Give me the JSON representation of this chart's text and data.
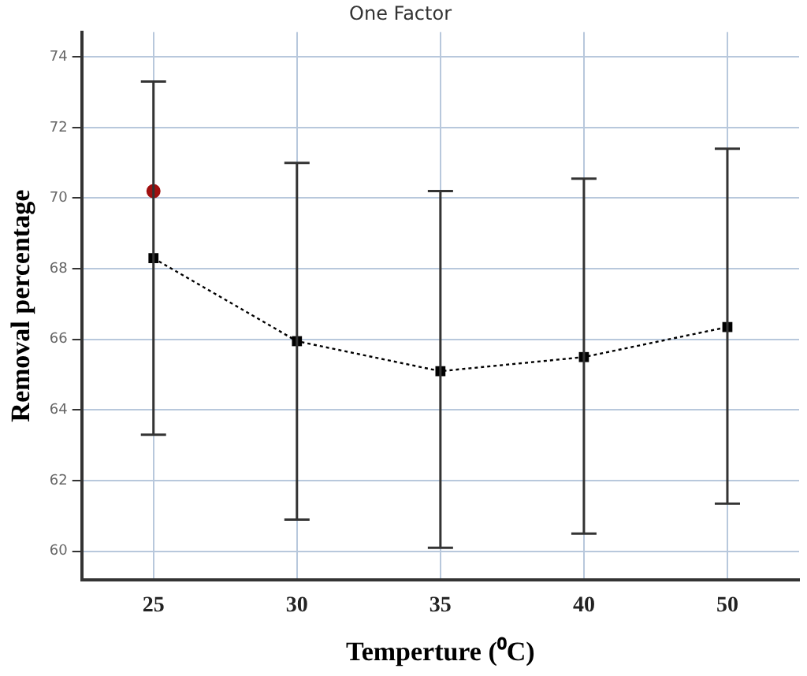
{
  "chart_data": {
    "type": "line",
    "title": "One Factor",
    "xlabel": "Temperture (⁰C)",
    "ylabel": "Removal percentage",
    "categories": [
      "25",
      "30",
      "35",
      "40",
      "50"
    ],
    "series": [
      {
        "color": "#000000",
        "marker": "square",
        "line_style": "dotted",
        "values": [
          68.3,
          65.95,
          65.1,
          65.5,
          66.35
        ],
        "errors": [
          [
            63.3,
            73.3
          ],
          [
            60.9,
            71.0
          ],
          [
            60.1,
            70.2
          ],
          [
            60.5,
            70.55
          ],
          [
            61.35,
            71.4
          ]
        ]
      },
      {
        "type": "scatter",
        "color": "#a01010",
        "marker": "circle",
        "x": [
          "25"
        ],
        "values": [
          70.2
        ]
      }
    ],
    "ylim": [
      59.2,
      74.7
    ],
    "yticks": [
      60,
      62,
      64,
      66,
      68,
      70,
      72,
      74
    ],
    "grid": true,
    "legend": false
  }
}
